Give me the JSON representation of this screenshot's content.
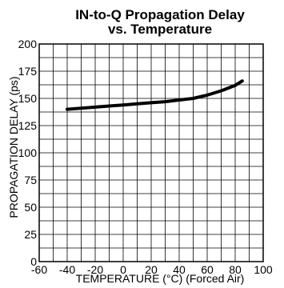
{
  "chart_data": {
    "type": "line",
    "title_line1": "IN-to-Q Propagation Delay",
    "title_line2": "vs. Temperature",
    "xlabel": "TEMPERATURE (°C) (Forced Air)",
    "ylabel": "PROPAGATION DELAY (ps)",
    "xlim": [
      -60,
      100
    ],
    "ylim": [
      0,
      200
    ],
    "x_ticks": [
      "-60",
      "-40",
      "-20",
      "0",
      "20",
      "40",
      "60",
      "80",
      "100"
    ],
    "y_ticks": [
      "0",
      "25",
      "50",
      "75",
      "100",
      "125",
      "150",
      "175",
      "200"
    ],
    "x_minor_step": 10,
    "y_minor_step": 12.5,
    "grid": true,
    "line_color": "#000000",
    "series": [
      {
        "x": [
          -40,
          -30,
          -20,
          -10,
          0,
          10,
          20,
          30,
          40,
          50,
          60,
          70,
          80,
          85
        ],
        "y": [
          140,
          141,
          142,
          143,
          144,
          145,
          146,
          147,
          148.5,
          150,
          153,
          157,
          162,
          166
        ]
      }
    ]
  }
}
